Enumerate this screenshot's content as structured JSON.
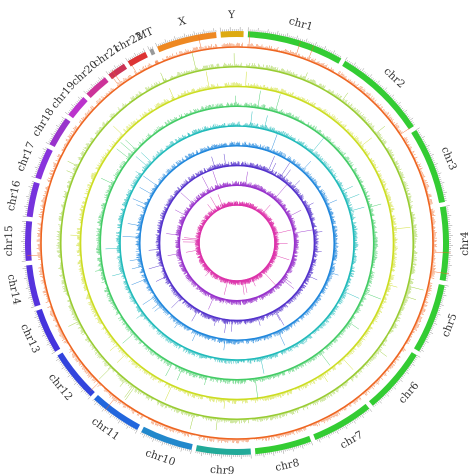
{
  "chart_data": {
    "type": "circos",
    "title": "",
    "chromosomes": [
      {
        "name": "chr1",
        "label": "chr1",
        "color": "#33cc33",
        "length": 249
      },
      {
        "name": "chr2",
        "label": "chr2",
        "color": "#33cc33",
        "length": 243
      },
      {
        "name": "chr3",
        "label": "chr3",
        "color": "#33cc33",
        "length": 198
      },
      {
        "name": "chr4",
        "label": "chr4",
        "color": "#33cc33",
        "length": 191
      },
      {
        "name": "chr5",
        "label": "chr5",
        "color": "#33cc33",
        "length": 181
      },
      {
        "name": "chr6",
        "label": "chr6",
        "color": "#33cc33",
        "length": 171
      },
      {
        "name": "chr7",
        "label": "chr7",
        "color": "#33cc33",
        "length": 159
      },
      {
        "name": "chr8",
        "label": "chr8",
        "color": "#33cc33",
        "length": 146
      },
      {
        "name": "chr9",
        "label": "chr9",
        "color": "#22aa99",
        "length": 141
      },
      {
        "name": "chr10",
        "label": "chr10",
        "color": "#2288cc",
        "length": 136
      },
      {
        "name": "chr11",
        "label": "chr11",
        "color": "#2266dd",
        "length": 135
      },
      {
        "name": "chr12",
        "label": "chr12",
        "color": "#3344dd",
        "length": 134
      },
      {
        "name": "chr13",
        "label": "chr13",
        "color": "#4433dd",
        "length": 115
      },
      {
        "name": "chr14",
        "label": "chr14",
        "color": "#5533dd",
        "length": 107
      },
      {
        "name": "chr15",
        "label": "chr15",
        "color": "#6633dd",
        "length": 102
      },
      {
        "name": "chr16",
        "label": "chr16",
        "color": "#7733dd",
        "length": 90
      },
      {
        "name": "chr17",
        "label": "chr17",
        "color": "#8833dd",
        "length": 81
      },
      {
        "name": "chr18",
        "label": "chr18",
        "color": "#9933cc",
        "length": 78
      },
      {
        "name": "chr19",
        "label": "chr19",
        "color": "#bb33cc",
        "length": 59
      },
      {
        "name": "chr20",
        "label": "chr20",
        "color": "#cc3399",
        "length": 63
      },
      {
        "name": "chr21",
        "label": "chr21",
        "color": "#cc3355",
        "length": 48
      },
      {
        "name": "chr22",
        "label": "chr22",
        "color": "#dd3333",
        "length": 51
      },
      {
        "name": "MT",
        "label": "MT",
        "color": "#999999",
        "length": 10
      },
      {
        "name": "X",
        "label": "X",
        "color": "#ee8822",
        "length": 155
      },
      {
        "name": "Y",
        "label": "Y",
        "color": "#ddaa11",
        "length": 59
      }
    ],
    "tracks": [
      {
        "color": "#ee6622"
      },
      {
        "color": "#99cc33"
      },
      {
        "color": "#ccdd22"
      },
      {
        "color": "#44cc66"
      },
      {
        "color": "#22bbbb"
      },
      {
        "color": "#2288dd"
      },
      {
        "color": "#5533cc"
      },
      {
        "color": "#9933cc"
      },
      {
        "color": "#dd33aa"
      }
    ]
  }
}
